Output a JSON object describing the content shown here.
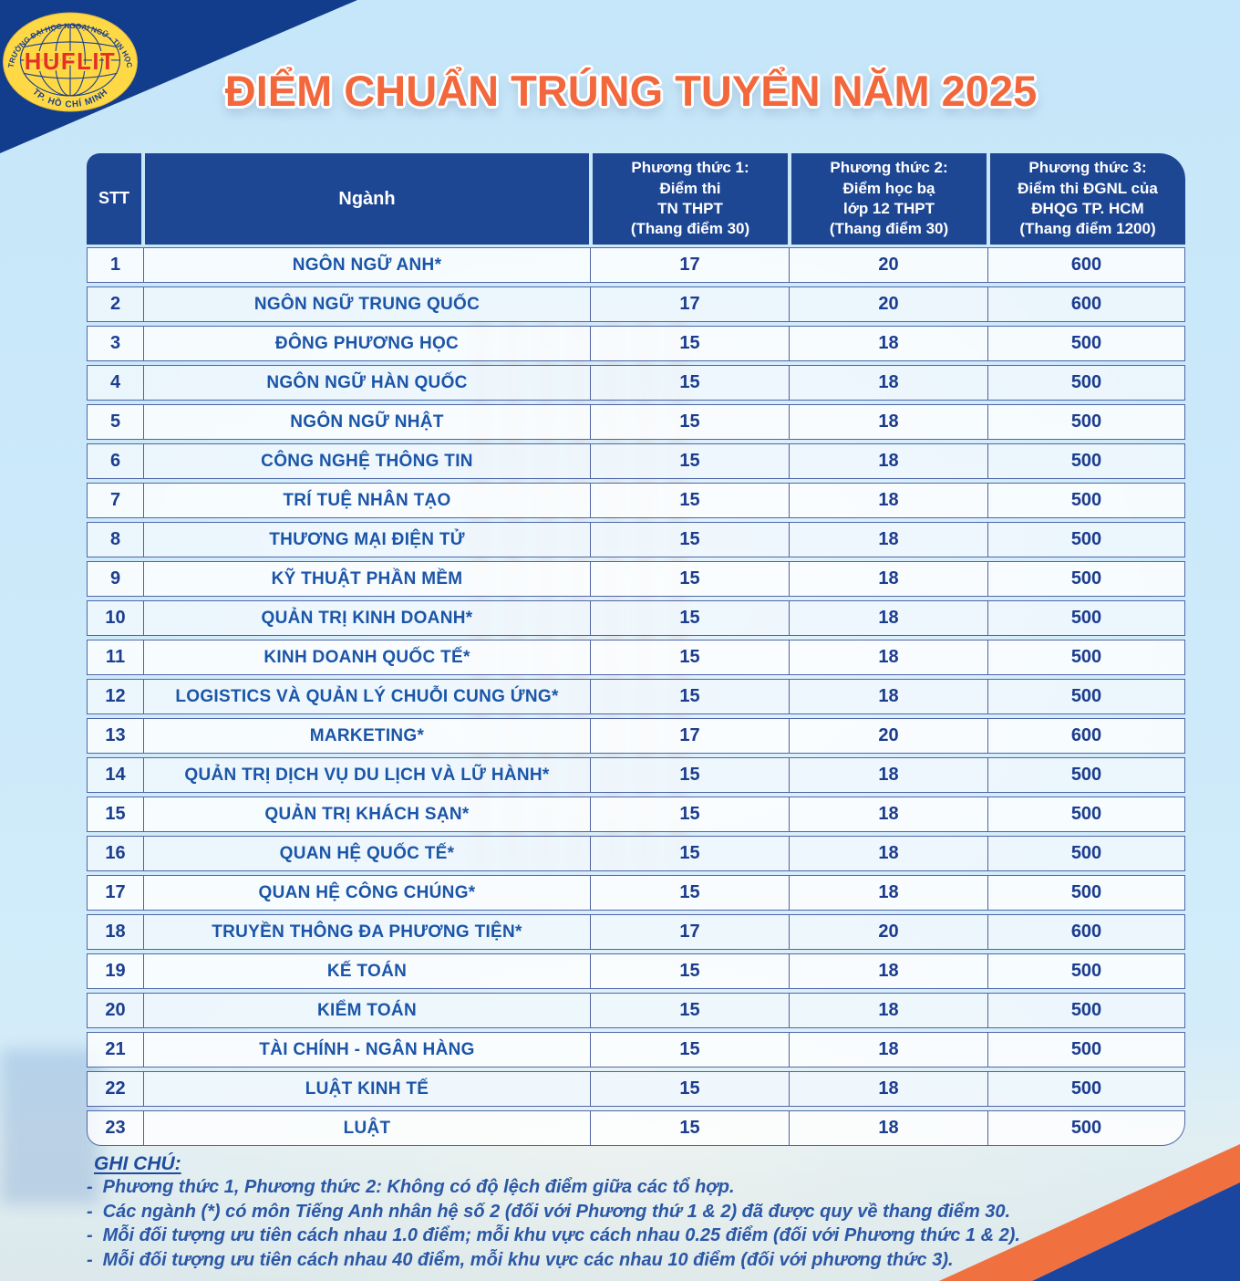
{
  "logo": {
    "acronym": "HUFLIT",
    "arc_top": "TRƯỜNG ĐẠI HỌC NGOẠI NGỮ - TIN HỌC",
    "arc_bottom": "TP. HỒ CHÍ MINH"
  },
  "title": "ĐIỂM CHUẨN TRÚNG TUYỂN NĂM 2025",
  "colors": {
    "title_orange": "#f2673c",
    "header_blue": "#1d4693",
    "corner_navy": "#123d8c",
    "ribbon_orange": "#f0703f",
    "text_blue": "#1b55a8"
  },
  "table": {
    "headers": {
      "stt": "STT",
      "nganh": "Ngành",
      "pt1": "Phương thức 1:\nĐiểm thi\nTN THPT\n(Thang điểm 30)",
      "pt2": "Phương thức 2:\nĐiểm học bạ\nlớp 12 THPT\n(Thang điểm 30)",
      "pt3": "Phương thức 3:\nĐiểm thi ĐGNL của\nĐHQG TP. HCM\n(Thang điểm 1200)"
    },
    "rows": [
      {
        "stt": "1",
        "nganh": "NGÔN NGỮ ANH*",
        "pt1": "17",
        "pt2": "20",
        "pt3": "600"
      },
      {
        "stt": "2",
        "nganh": "NGÔN NGỮ TRUNG QUỐC",
        "pt1": "17",
        "pt2": "20",
        "pt3": "600"
      },
      {
        "stt": "3",
        "nganh": "ĐÔNG PHƯƠNG HỌC",
        "pt1": "15",
        "pt2": "18",
        "pt3": "500"
      },
      {
        "stt": "4",
        "nganh": "NGÔN NGỮ HÀN QUỐC",
        "pt1": "15",
        "pt2": "18",
        "pt3": "500"
      },
      {
        "stt": "5",
        "nganh": "NGÔN NGỮ NHẬT",
        "pt1": "15",
        "pt2": "18",
        "pt3": "500"
      },
      {
        "stt": "6",
        "nganh": "CÔNG NGHỆ THÔNG TIN",
        "pt1": "15",
        "pt2": "18",
        "pt3": "500"
      },
      {
        "stt": "7",
        "nganh": "TRÍ TUỆ NHÂN TẠO",
        "pt1": "15",
        "pt2": "18",
        "pt3": "500"
      },
      {
        "stt": "8",
        "nganh": "THƯƠNG MẠI ĐIỆN TỬ",
        "pt1": "15",
        "pt2": "18",
        "pt3": "500"
      },
      {
        "stt": "9",
        "nganh": "KỸ THUẬT PHẦN MỀM",
        "pt1": "15",
        "pt2": "18",
        "pt3": "500"
      },
      {
        "stt": "10",
        "nganh": "QUẢN TRỊ KINH DOANH*",
        "pt1": "15",
        "pt2": "18",
        "pt3": "500"
      },
      {
        "stt": "11",
        "nganh": "KINH DOANH QUỐC TẾ*",
        "pt1": "15",
        "pt2": "18",
        "pt3": "500"
      },
      {
        "stt": "12",
        "nganh": "LOGISTICS VÀ QUẢN LÝ CHUỖI CUNG ỨNG*",
        "pt1": "15",
        "pt2": "18",
        "pt3": "500"
      },
      {
        "stt": "13",
        "nganh": "MARKETING*",
        "pt1": "17",
        "pt2": "20",
        "pt3": "600"
      },
      {
        "stt": "14",
        "nganh": "QUẢN TRỊ DỊCH VỤ DU LỊCH VÀ LỮ HÀNH*",
        "pt1": "15",
        "pt2": "18",
        "pt3": "500"
      },
      {
        "stt": "15",
        "nganh": "QUẢN TRỊ KHÁCH SẠN*",
        "pt1": "15",
        "pt2": "18",
        "pt3": "500"
      },
      {
        "stt": "16",
        "nganh": "QUAN HỆ QUỐC TẾ*",
        "pt1": "15",
        "pt2": "18",
        "pt3": "500"
      },
      {
        "stt": "17",
        "nganh": "QUAN HỆ CÔNG CHÚNG*",
        "pt1": "15",
        "pt2": "18",
        "pt3": "500"
      },
      {
        "stt": "18",
        "nganh": "TRUYỀN THÔNG ĐA PHƯƠNG TIỆN*",
        "pt1": "17",
        "pt2": "20",
        "pt3": "600"
      },
      {
        "stt": "19",
        "nganh": "KẾ TOÁN",
        "pt1": "15",
        "pt2": "18",
        "pt3": "500"
      },
      {
        "stt": "20",
        "nganh": "KIỂM TOÁN",
        "pt1": "15",
        "pt2": "18",
        "pt3": "500"
      },
      {
        "stt": "21",
        "nganh": "TÀI CHÍNH - NGÂN HÀNG",
        "pt1": "15",
        "pt2": "18",
        "pt3": "500"
      },
      {
        "stt": "22",
        "nganh": "LUẬT KINH TẾ",
        "pt1": "15",
        "pt2": "18",
        "pt3": "500"
      },
      {
        "stt": "23",
        "nganh": "LUẬT",
        "pt1": "15",
        "pt2": "18",
        "pt3": "500"
      }
    ]
  },
  "notes": {
    "label": "GHI CHÚ:",
    "dash": "-",
    "items": [
      "Phương thức 1, Phương thức 2: Không có độ lệch điểm giữa các tổ hợp.",
      "Các ngành (*) có môn Tiếng Anh nhân hệ số 2 (đối với Phương thứ 1 & 2) đã được quy về thang điểm 30.",
      "Mỗi đối tượng ưu tiên cách nhau 1.0 điểm; mỗi khu vực cách nhau 0.25 điểm (đối với Phương thức 1 & 2).",
      "Mỗi đối tượng ưu tiên cách nhau 40 điểm, mỗi khu vực các nhau 10 điểm (đối với phương thức 3)."
    ]
  }
}
